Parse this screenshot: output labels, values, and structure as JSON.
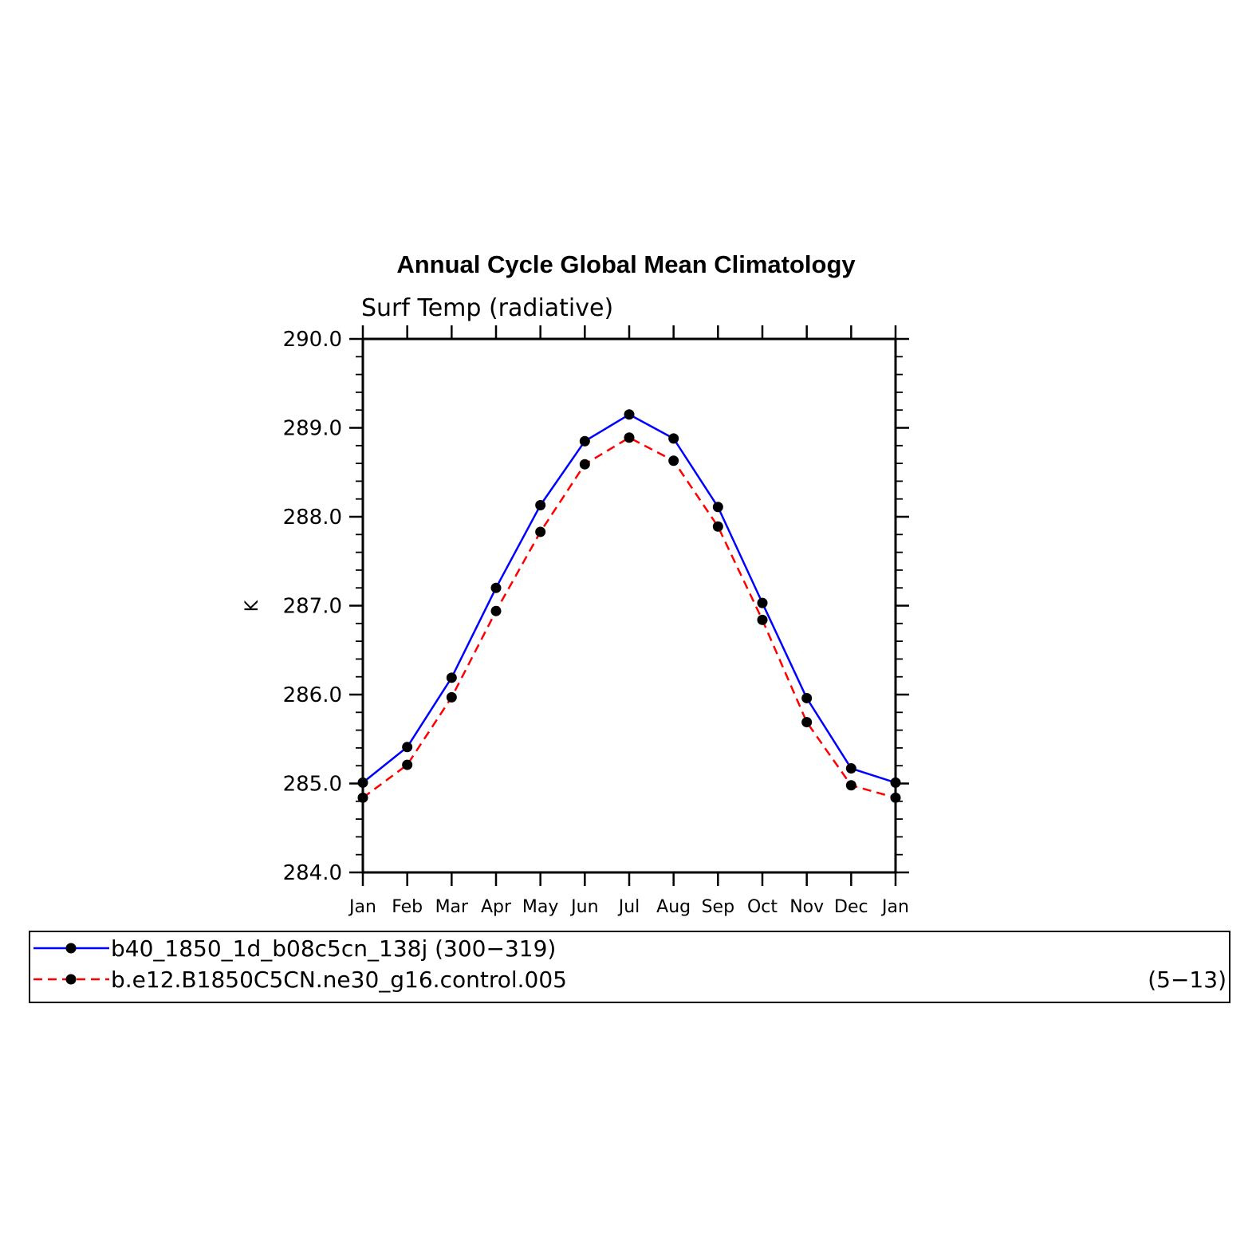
{
  "chart_data": {
    "type": "line",
    "title": "Annual Cycle Global Mean Climatology",
    "subtitle": "Surf Temp (radiative)",
    "xlabel": "",
    "ylabel": "K",
    "categories": [
      "Jan",
      "Feb",
      "Mar",
      "Apr",
      "May",
      "Jun",
      "Jul",
      "Aug",
      "Sep",
      "Oct",
      "Nov",
      "Dec",
      "Jan"
    ],
    "ylim": [
      284.0,
      290.0
    ],
    "yticks": [
      "284.0",
      "285.0",
      "286.0",
      "287.0",
      "288.0",
      "289.0",
      "290.0"
    ],
    "grid": false,
    "legend_position": "bottom",
    "series": [
      {
        "name": "b40_1850_1d_b08c5cn_138j (300−319)",
        "color": "#0000ff",
        "dash": "solid",
        "marker": "filled-circle",
        "values": [
          285.01,
          285.41,
          286.19,
          287.2,
          288.13,
          288.85,
          289.15,
          288.88,
          288.11,
          287.03,
          285.96,
          285.17,
          285.01
        ]
      },
      {
        "name": "b.e12.B1850C5CN.ne30_g16.control.005",
        "years": "(5−13)",
        "color": "#ff0000",
        "dash": "dashed",
        "marker": "filled-circle",
        "values": [
          284.84,
          285.21,
          285.97,
          286.94,
          287.83,
          288.59,
          288.89,
          288.63,
          287.89,
          286.84,
          285.69,
          284.98,
          284.84
        ]
      }
    ]
  }
}
